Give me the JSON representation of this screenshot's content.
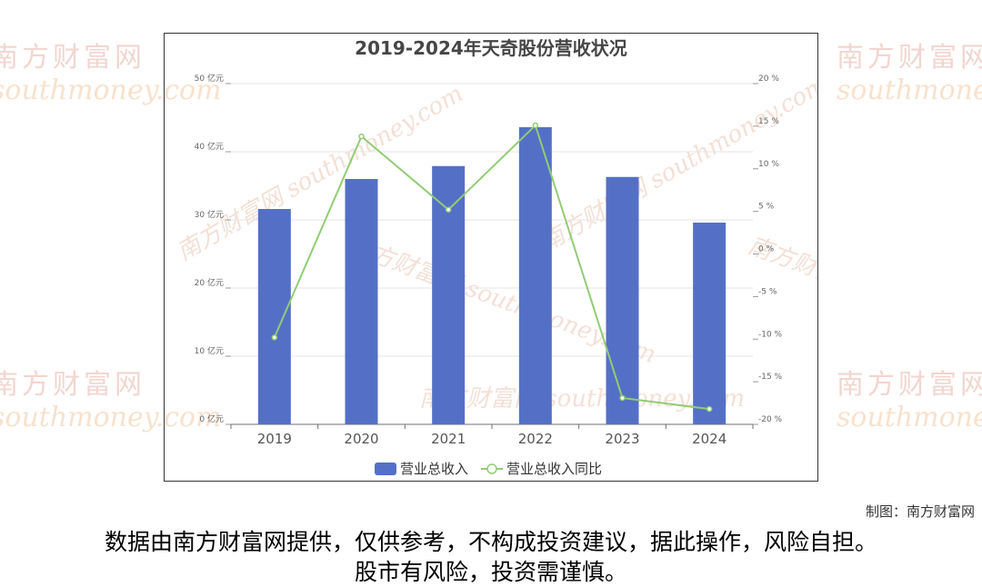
{
  "watermark": {
    "cn": "南方财富网",
    "en": "southmoney.com"
  },
  "chart_data": {
    "type": "bar",
    "title": "2019-2024年天奇股份营收状况",
    "categories": [
      "2019",
      "2020",
      "2021",
      "2022",
      "2023",
      "2024"
    ],
    "series": [
      {
        "name": "营业总收入",
        "type": "bar",
        "axis": "left",
        "color": "#5470c6",
        "values": [
          31.6,
          36.0,
          37.9,
          43.6,
          36.3,
          29.6
        ]
      },
      {
        "name": "营业总收入同比",
        "type": "line",
        "axis": "right",
        "color": "#91cc75",
        "values": [
          -9.8,
          13.8,
          5.2,
          15.1,
          -16.9,
          -18.2
        ]
      }
    ],
    "y_left": {
      "ticks": [
        0,
        10,
        20,
        30,
        40,
        50
      ],
      "unit": "亿元",
      "ylim": [
        0,
        50
      ]
    },
    "y_right": {
      "ticks": [
        -20,
        -15,
        -10,
        -5,
        0,
        5,
        10,
        15,
        20
      ],
      "unit": "%",
      "ylim": [
        -20,
        20
      ]
    },
    "grid": true,
    "legend": "bottom"
  },
  "credit": "制图：南方财富网",
  "disclaimer": {
    "line1": "数据由南方财富网提供，仅供参考，不构成投资建议，据此操作，风险自担。",
    "line2": "股市有风险，投资需谨慎。"
  }
}
